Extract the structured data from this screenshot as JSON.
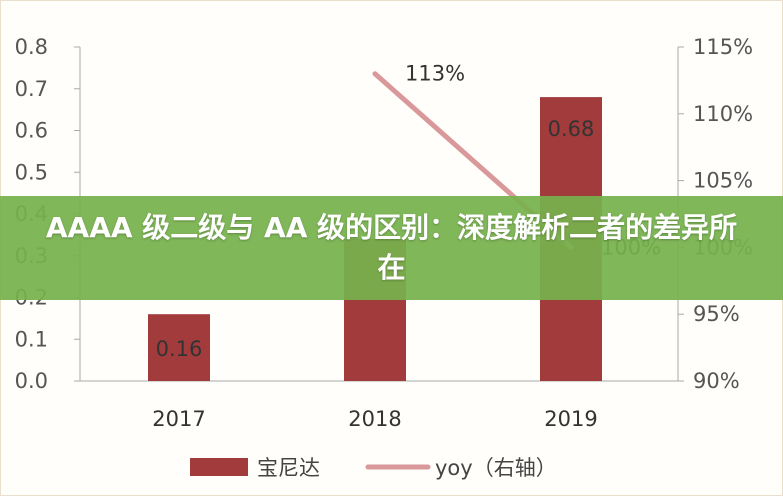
{
  "chart_data": {
    "type": "bar",
    "categories": [
      "2017",
      "2018",
      "2019"
    ],
    "series": [
      {
        "name": "宝尼达",
        "kind": "bar",
        "axis": "left",
        "color": "#a23b3b",
        "values": [
          0.16,
          0.34,
          0.68
        ],
        "labels": [
          "0.16",
          "",
          "0.68"
        ]
      },
      {
        "name": "yoy（右轴）",
        "kind": "line",
        "axis": "right",
        "color": "#d9999a",
        "values": [
          null,
          113,
          100
        ],
        "labels": [
          "",
          "113%",
          "100%"
        ]
      }
    ],
    "ylim_left": [
      0,
      0.8
    ],
    "yticks_left": [
      "0.0",
      "0.1",
      "0.2",
      "0.3",
      "0.4",
      "0.5",
      "0.6",
      "0.7",
      "0.8"
    ],
    "ylim_right": [
      90,
      115
    ],
    "yticks_right": [
      "90%",
      "95%",
      "100%",
      "105%",
      "110%",
      "115%"
    ],
    "grid": false,
    "legend_position": "bottom"
  },
  "banner": {
    "title": "AAAA 级二级与 AA 级的区别：深度解析二者的差异所在"
  }
}
